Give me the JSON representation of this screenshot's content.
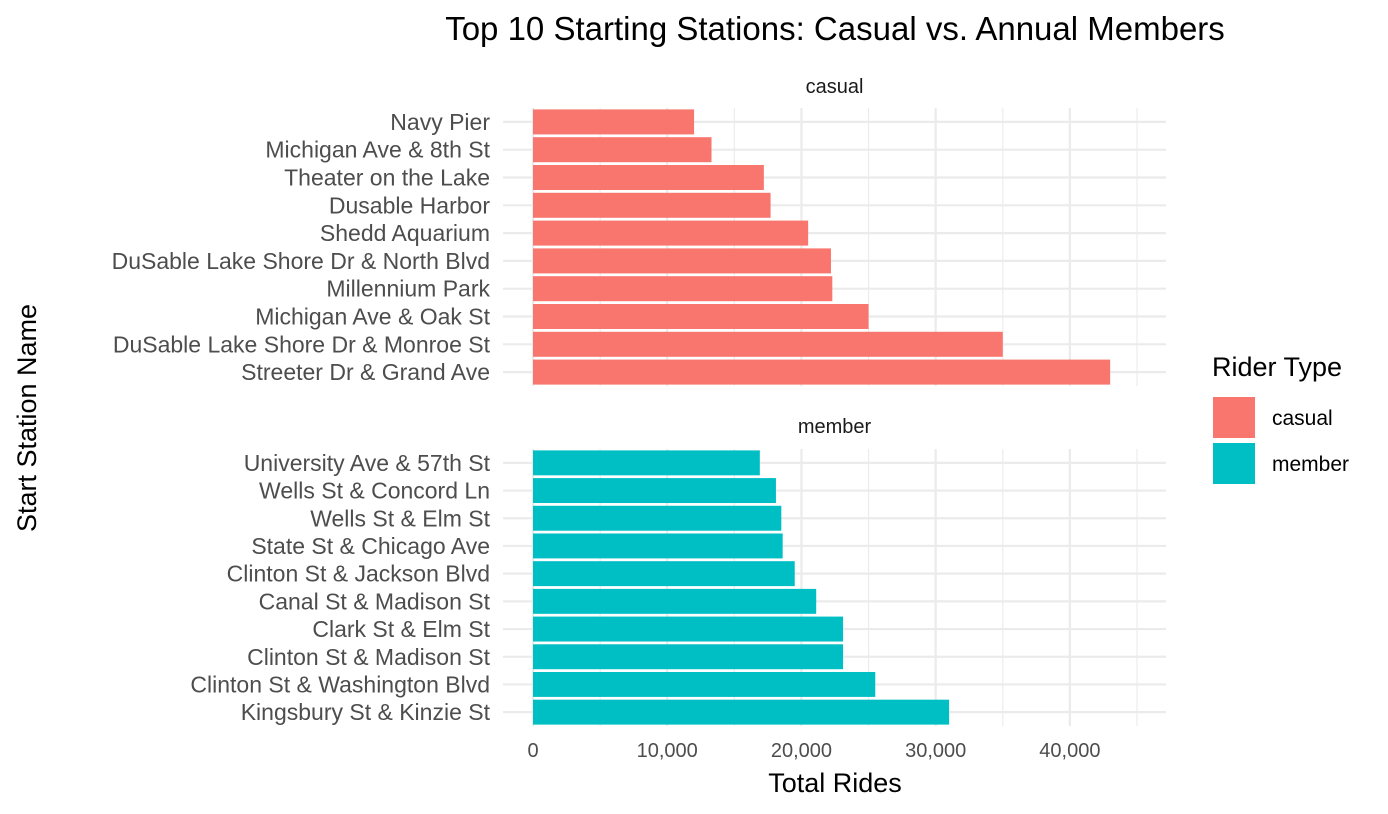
{
  "chart_data": {
    "type": "bar",
    "orientation": "horizontal",
    "title": "Top 10 Starting Stations: Casual vs. Annual Members",
    "xlabel": "Total Rides",
    "ylabel": "Start Station Name",
    "xlim": [
      0,
      45000
    ],
    "x_ticks": [
      0,
      10000,
      20000,
      30000,
      40000
    ],
    "x_tick_labels": [
      "0",
      "10,000",
      "20,000",
      "30,000",
      "40,000"
    ],
    "grid": true,
    "legend": {
      "title": "Rider Type",
      "placement": "right",
      "entries": [
        {
          "label": "casual",
          "color": "#F8766D"
        },
        {
          "label": "member",
          "color": "#00BFC4"
        }
      ]
    },
    "facets": [
      {
        "name": "casual",
        "color": "#F8766D",
        "categories": [
          "Navy Pier",
          "Michigan Ave & 8th St",
          "Theater on the Lake",
          "Dusable Harbor",
          "Shedd Aquarium",
          "DuSable Lake Shore Dr & North Blvd",
          "Millennium Park",
          "Michigan Ave & Oak St",
          "DuSable Lake Shore Dr & Monroe St",
          "Streeter Dr & Grand Ave"
        ],
        "values": [
          12000,
          13300,
          17200,
          17700,
          20500,
          22200,
          22300,
          25000,
          35000,
          43000
        ]
      },
      {
        "name": "member",
        "color": "#00BFC4",
        "categories": [
          "University Ave & 57th St",
          "Wells St & Concord Ln",
          "Wells St & Elm St",
          "State St & Chicago Ave",
          "Clinton St & Jackson Blvd",
          "Canal St & Madison St",
          "Clark St & Elm St",
          "Clinton St & Madison St",
          "Clinton St & Washington Blvd",
          "Kingsbury St & Kinzie St"
        ],
        "values": [
          16900,
          18100,
          18500,
          18600,
          19500,
          21100,
          23100,
          23100,
          25500,
          31000
        ]
      }
    ]
  }
}
